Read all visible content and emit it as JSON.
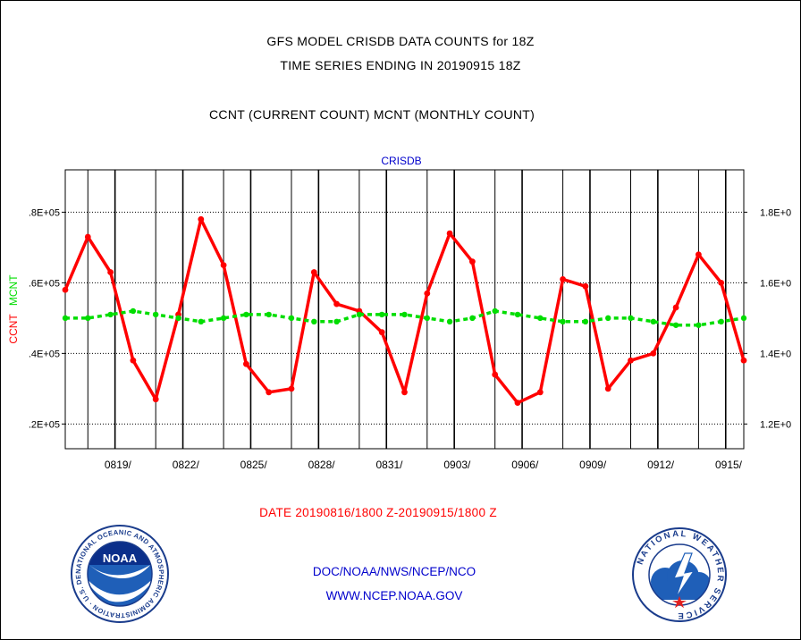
{
  "header": {
    "title_line1": "GFS MODEL CRISDB DATA COUNTS for 18Z",
    "title_line2": "TIME SERIES ENDING IN 20190915 18Z",
    "title_line3": "CCNT (CURRENT COUNT) MCNT (MONTHLY COUNT)"
  },
  "footer": {
    "date_range": "DATE 20190816/1800 Z-20190915/1800 Z",
    "line1": "DOC/NOAA/NWS/NCEP/NCO",
    "line2": "WWW.NCEP.NOAA.GOV"
  },
  "logos": {
    "noaa_text": "NOAA",
    "noaa_ring": "NATIONAL OCEANIC AND ATMOSPHERIC ADMINISTRATION · U.S. DEPARTMENT OF COMMERCE ·",
    "nws_ring": "NATIONAL WEATHER SERVICE"
  },
  "colors": {
    "ccnt": "#ff0000",
    "mcnt": "#00dd00",
    "label_blue": "#0000cc",
    "grid": "#000000"
  },
  "chart_data": {
    "type": "line",
    "title": "CRISDB",
    "ylabel_left_parts": [
      "CCNT",
      "MCNT"
    ],
    "ylim": [
      1.13,
      1.92
    ],
    "yticks": [
      1.2,
      1.4,
      1.6,
      1.8
    ],
    "yticklabels_left": [
      ".2E+05",
      ".4E+05",
      ".6E+05",
      ".8E+05"
    ],
    "yticklabels_right": [
      "1.2E+0",
      "1.4E+0",
      "1.6E+0",
      "1.8E+0"
    ],
    "xlim": [
      0,
      30
    ],
    "xticks": [
      3,
      6,
      9,
      12,
      15,
      18,
      21,
      24,
      27,
      30
    ],
    "xticklabels": [
      "0819/",
      "0822/",
      "0825/",
      "0828/",
      "0831/",
      "0903/",
      "0906/",
      "0909/",
      "0912/",
      "0915/"
    ],
    "major_day_lines": [
      2.2,
      5.2,
      8.2,
      11.2,
      14.2,
      17.2,
      20.2,
      23.2,
      26.2,
      29.2
    ],
    "minor_day_lines": [
      1,
      4,
      7,
      10,
      13,
      16,
      19,
      22,
      25,
      28
    ],
    "grid": true,
    "series": [
      {
        "name": "CCNT",
        "color": "#ff0000",
        "x": [
          0,
          1,
          2,
          3,
          4,
          5,
          6,
          7,
          8,
          9,
          10,
          11,
          12,
          13,
          14,
          15,
          16,
          17,
          18,
          19,
          20,
          21,
          22,
          23,
          24,
          25,
          26,
          27,
          28,
          29,
          30
        ],
        "values": [
          1.58,
          1.73,
          1.63,
          1.38,
          1.27,
          1.51,
          1.78,
          1.65,
          1.37,
          1.29,
          1.3,
          1.63,
          1.54,
          1.52,
          1.46,
          1.29,
          1.57,
          1.74,
          1.66,
          1.34,
          1.26,
          1.29,
          1.61,
          1.59,
          1.3,
          1.38,
          1.4,
          1.53,
          1.68,
          1.6,
          1.38
        ]
      },
      {
        "name": "MCNT",
        "color": "#00dd00",
        "x": [
          0,
          1,
          2,
          3,
          4,
          5,
          6,
          7,
          8,
          9,
          10,
          11,
          12,
          13,
          14,
          15,
          16,
          17,
          18,
          19,
          20,
          21,
          22,
          23,
          24,
          25,
          26,
          27,
          28,
          29,
          30
        ],
        "values": [
          1.5,
          1.5,
          1.51,
          1.52,
          1.51,
          1.5,
          1.49,
          1.5,
          1.51,
          1.51,
          1.5,
          1.49,
          1.49,
          1.51,
          1.51,
          1.51,
          1.5,
          1.49,
          1.5,
          1.52,
          1.51,
          1.5,
          1.49,
          1.49,
          1.5,
          1.5,
          1.49,
          1.48,
          1.48,
          1.49,
          1.5
        ]
      }
    ]
  }
}
